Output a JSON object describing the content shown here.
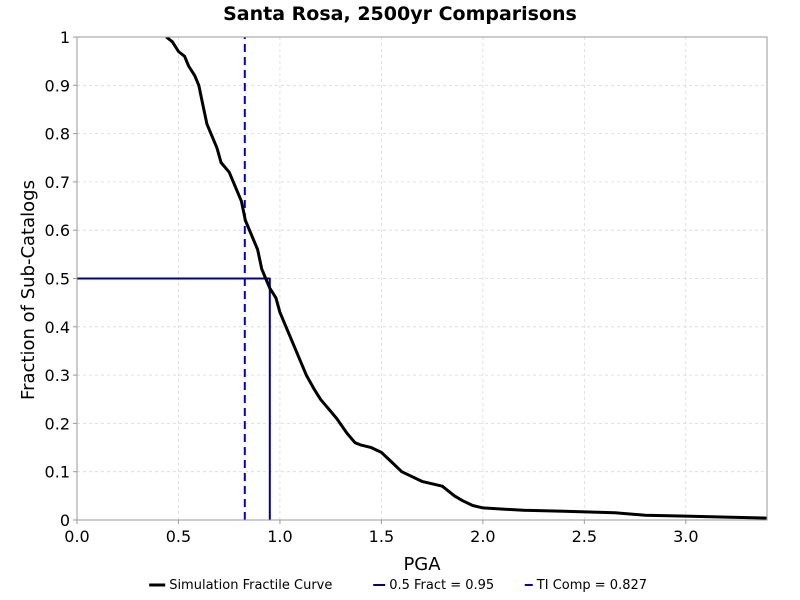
{
  "chart_data": {
    "type": "line",
    "title": "Santa Rosa, 2500yr Comparisons",
    "xlabel": "PGA",
    "ylabel": "Fraction of Sub-Catalogs",
    "xlim": [
      0.0,
      3.4
    ],
    "ylim": [
      0,
      1
    ],
    "x_ticks": [
      "0.0",
      "0.5",
      "1.0",
      "1.5",
      "2.0",
      "2.5",
      "3.0"
    ],
    "x_tick_values": [
      0.0,
      0.5,
      1.0,
      1.5,
      2.0,
      2.5,
      3.0
    ],
    "y_ticks": [
      "0",
      "0.1",
      "0.2",
      "0.3",
      "0.4",
      "0.5",
      "0.6",
      "0.7",
      "0.8",
      "0.9",
      "1"
    ],
    "y_tick_values": [
      0,
      0.1,
      0.2,
      0.3,
      0.4,
      0.5,
      0.6,
      0.7,
      0.8,
      0.9,
      1
    ],
    "grid": true,
    "legend_position": "bottom",
    "series": [
      {
        "name": "Simulation Fractile Curve",
        "color": "#000000",
        "style": "solid",
        "x": [
          0.44,
          0.47,
          0.5,
          0.53,
          0.55,
          0.58,
          0.6,
          0.62,
          0.64,
          0.66,
          0.69,
          0.71,
          0.75,
          0.78,
          0.81,
          0.83,
          0.86,
          0.89,
          0.91,
          0.93,
          0.95,
          0.98,
          1.0,
          1.03,
          1.06,
          1.1,
          1.13,
          1.17,
          1.2,
          1.24,
          1.28,
          1.33,
          1.37,
          1.4,
          1.45,
          1.5,
          1.55,
          1.6,
          1.7,
          1.8,
          1.86,
          1.9,
          1.95,
          2.0,
          2.2,
          2.4,
          2.65,
          2.8,
          3.0,
          3.2,
          3.4
        ],
        "y": [
          1.0,
          0.99,
          0.97,
          0.96,
          0.94,
          0.92,
          0.9,
          0.86,
          0.82,
          0.8,
          0.77,
          0.74,
          0.72,
          0.69,
          0.66,
          0.62,
          0.59,
          0.56,
          0.52,
          0.5,
          0.48,
          0.46,
          0.43,
          0.4,
          0.37,
          0.33,
          0.3,
          0.27,
          0.25,
          0.23,
          0.21,
          0.18,
          0.16,
          0.155,
          0.15,
          0.14,
          0.12,
          0.1,
          0.08,
          0.07,
          0.05,
          0.04,
          0.03,
          0.025,
          0.02,
          0.018,
          0.015,
          0.01,
          0.008,
          0.006,
          0.004
        ]
      },
      {
        "name": "0.5 Fract = 0.95",
        "color": "#00008b",
        "style": "solid",
        "x": [
          0.0,
          0.95,
          0.95
        ],
        "y": [
          0.5,
          0.5,
          0.0
        ]
      },
      {
        "name": "TI Comp = 0.827",
        "color": "#0000cd",
        "style": "dashed",
        "x": [
          0.827,
          0.827
        ],
        "y": [
          0.0,
          1.0
        ]
      }
    ]
  }
}
